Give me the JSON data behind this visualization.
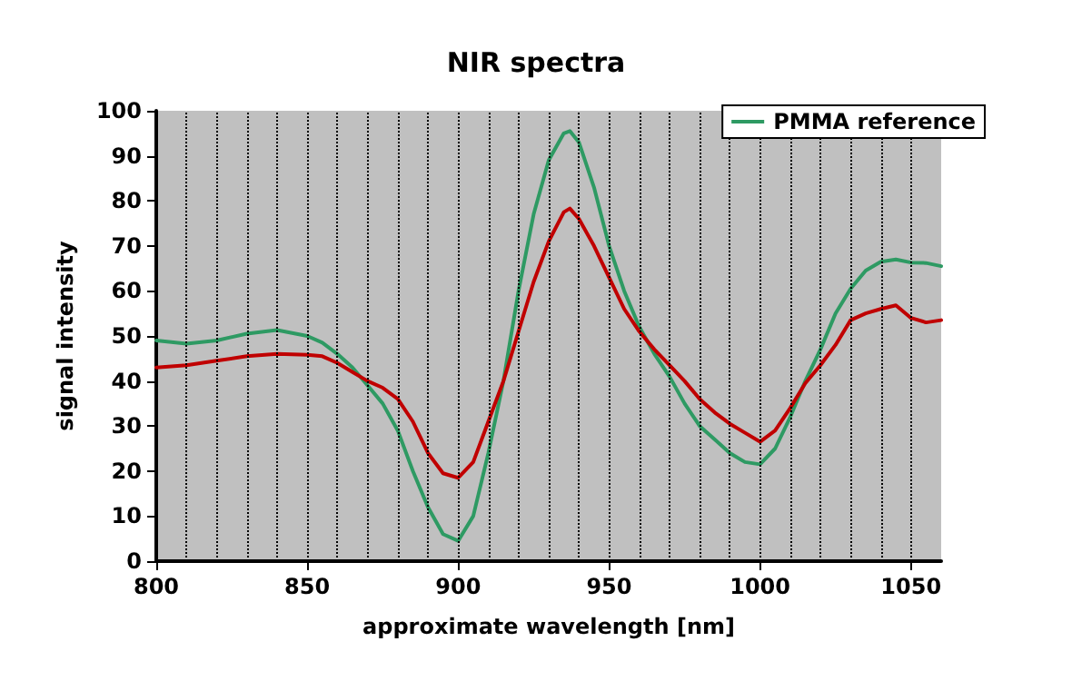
{
  "chart_data": {
    "type": "line",
    "title": "NIR spectra",
    "xlabel": "approximate wavelength [nm]",
    "ylabel": "signal intensity",
    "x": [
      800,
      810,
      820,
      830,
      840,
      850,
      855,
      860,
      865,
      870,
      875,
      880,
      885,
      890,
      895,
      900,
      905,
      910,
      915,
      920,
      925,
      930,
      935,
      937,
      940,
      945,
      950,
      955,
      960,
      965,
      970,
      975,
      980,
      985,
      990,
      995,
      1000,
      1005,
      1010,
      1015,
      1020,
      1025,
      1030,
      1035,
      1040,
      1045,
      1050,
      1055,
      1060
    ],
    "series": [
      {
        "name": "PMMA reference",
        "color": "#2e9a63",
        "values": [
          49,
          48.3,
          49,
          50.5,
          51.3,
          50,
          48.5,
          46,
          43,
          39,
          35,
          29,
          20,
          12,
          6,
          4.5,
          10,
          24,
          40,
          60,
          77,
          89,
          95,
          95.5,
          93,
          83,
          70,
          60,
          52,
          46,
          41,
          35,
          30,
          27,
          24,
          22,
          21.5,
          25,
          32,
          40,
          47,
          55,
          60.5,
          64.5,
          66.5,
          67,
          66.3,
          66.2,
          65.5
        ]
      },
      {
        "color": "#c00000",
        "values": [
          43,
          43.5,
          44.5,
          45.5,
          46,
          45.8,
          45.5,
          44,
          42,
          40,
          38.5,
          36,
          31,
          24,
          19.5,
          18.5,
          22,
          31,
          40,
          51,
          62,
          71,
          77.5,
          78.3,
          76,
          70,
          63,
          56,
          51,
          47,
          43.5,
          40,
          36,
          33,
          30.5,
          28.5,
          26.5,
          29,
          34,
          39.5,
          43.5,
          48,
          53.5,
          55,
          56,
          56.8,
          54,
          53,
          53.5
        ]
      }
    ],
    "xlim": [
      800,
      1060
    ],
    "xticks": [
      800,
      850,
      900,
      950,
      1000,
      1050
    ],
    "ylim": [
      0,
      100
    ],
    "yticks": [
      0,
      10,
      20,
      30,
      40,
      50,
      60,
      70,
      80,
      90,
      100
    ],
    "grid": "x",
    "legend": "top right",
    "marker": "none",
    "line_style": "solid"
  }
}
